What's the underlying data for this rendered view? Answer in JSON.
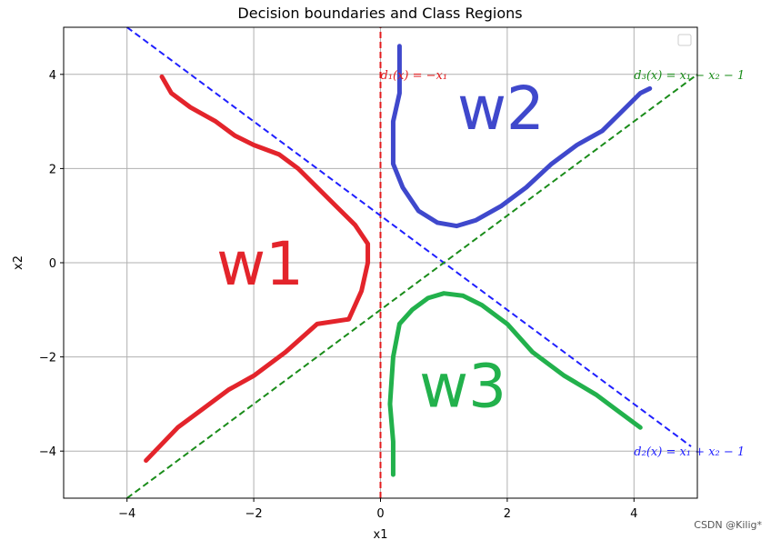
{
  "chart_data": {
    "type": "line",
    "title": "Decision boundaries and Class Regions",
    "xlabel": "x1",
    "ylabel": "x2",
    "xlim": [
      -5,
      5
    ],
    "ylim": [
      -5,
      5
    ],
    "xticks": [
      -4,
      -2,
      0,
      2,
      4
    ],
    "yticks": [
      -4,
      -2,
      0,
      2,
      4
    ],
    "xtick_labels": [
      "−4",
      "−2",
      "0",
      "2",
      "4"
    ],
    "ytick_labels": [
      "−4",
      "−2",
      "0",
      "2",
      "4"
    ],
    "grid": true,
    "legend": "top-right (empty box)",
    "series": [
      {
        "name": "d1(x) = -x1",
        "style": "dashed",
        "color": "#e31a1c",
        "x": [
          0,
          0
        ],
        "y": [
          -5,
          5
        ]
      },
      {
        "name": "d2(x) = x1 + x2 - 1",
        "style": "dashed",
        "color": "#1f1fff",
        "x": [
          -4,
          4.9
        ],
        "y": [
          5,
          -3.9
        ]
      },
      {
        "name": "d3(x) = x1 - x2 - 1",
        "style": "dashed",
        "color": "#1a8c1a",
        "x": [
          -4,
          5
        ],
        "y": [
          -5,
          4
        ]
      }
    ],
    "annotations": [
      {
        "text_math": "d1",
        "label": "d₁(x) = −x₁",
        "x": 0,
        "y": 4,
        "color": "#e31a1c"
      },
      {
        "text_math": "d3",
        "label": "d₃(x) = x₁ − x₂ − 1",
        "x": 4,
        "y": 4,
        "color": "#1a8c1a"
      },
      {
        "text_math": "d2",
        "label": "d₂(x) = x₁ + x₂ − 1",
        "x": 4,
        "y": -4,
        "color": "#1f1fff"
      }
    ],
    "handwritten": [
      {
        "label": "w1",
        "color": "#e3242b",
        "x": -1.9,
        "y": 0
      },
      {
        "label": "w2",
        "color": "#3f48cc",
        "x": 1.9,
        "y": 3.3
      },
      {
        "label": "w3",
        "color": "#22b14c",
        "x": 1.3,
        "y": -2.6
      }
    ],
    "region_curves": [
      {
        "color": "#e3242b",
        "x": [
          -3.45,
          -3.3,
          -3.0,
          -2.6,
          -2.3,
          -2.0,
          -1.6,
          -1.3,
          -1.0,
          -0.7,
          -0.4,
          -0.2,
          -0.2,
          -0.3,
          -0.5,
          -1.0,
          -1.5,
          -2.0,
          -2.4,
          -2.8,
          -3.2,
          -3.7
        ],
        "y": [
          3.95,
          3.6,
          3.3,
          3.0,
          2.7,
          2.5,
          2.3,
          2.0,
          1.6,
          1.2,
          0.8,
          0.4,
          0.0,
          -0.6,
          -1.2,
          -1.3,
          -1.9,
          -2.4,
          -2.7,
          -3.1,
          -3.5,
          -4.2
        ]
      },
      {
        "color": "#3f48cc",
        "x": [
          0.3,
          0.3,
          0.2,
          0.2,
          0.35,
          0.6,
          0.9,
          1.2,
          1.5,
          1.9,
          2.3,
          2.7,
          3.1,
          3.5,
          3.8,
          4.1,
          4.25
        ],
        "y": [
          4.6,
          3.6,
          3.0,
          2.1,
          1.6,
          1.1,
          0.85,
          0.78,
          0.9,
          1.2,
          1.6,
          2.1,
          2.5,
          2.8,
          3.2,
          3.6,
          3.7
        ]
      },
      {
        "color": "#22b14c",
        "x": [
          0.2,
          0.2,
          0.15,
          0.2,
          0.3,
          0.5,
          0.75,
          1.0,
          1.3,
          1.6,
          2.0,
          2.4,
          2.9,
          3.4,
          3.7,
          4.0,
          4.1
        ],
        "y": [
          -4.5,
          -3.8,
          -3.0,
          -2.0,
          -1.3,
          -1.0,
          -0.75,
          -0.65,
          -0.7,
          -0.9,
          -1.3,
          -1.9,
          -2.4,
          -2.8,
          -3.1,
          -3.4,
          -3.5
        ]
      }
    ]
  },
  "watermark": "CSDN @Kilig*"
}
